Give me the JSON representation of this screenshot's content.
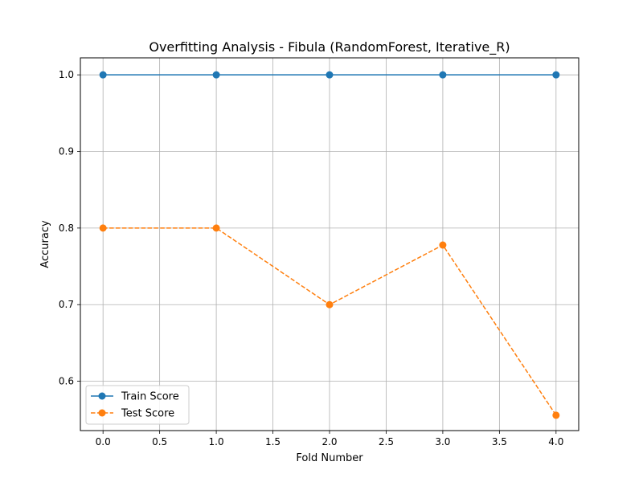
{
  "chart_data": {
    "type": "line",
    "title": "Overfitting Analysis - Fibula (RandomForest, Iterative_R)",
    "xlabel": "Fold Number",
    "ylabel": "Accuracy",
    "x": [
      0,
      1,
      2,
      3,
      4
    ],
    "xlim": [
      -0.2,
      4.2
    ],
    "ylim": [
      0.5356,
      1.0222
    ],
    "xticks": [
      0.0,
      0.5,
      1.0,
      1.5,
      2.0,
      2.5,
      3.0,
      3.5,
      4.0
    ],
    "xtick_labels": [
      "0.0",
      "0.5",
      "1.0",
      "1.5",
      "2.0",
      "2.5",
      "3.0",
      "3.5",
      "4.0"
    ],
    "yticks": [
      0.6,
      0.7,
      0.8,
      0.9,
      1.0
    ],
    "ytick_labels": [
      "0.6",
      "0.7",
      "0.8",
      "0.9",
      "1.0"
    ],
    "grid": true,
    "legend_position": "lower-left",
    "series": [
      {
        "name": "Train Score",
        "values": [
          1.0,
          1.0,
          1.0,
          1.0,
          1.0
        ],
        "color": "#1f77b4",
        "linestyle": "solid",
        "marker": "circle"
      },
      {
        "name": "Test Score",
        "values": [
          0.8,
          0.8,
          0.7,
          0.7778,
          0.5556
        ],
        "color": "#ff7f0e",
        "linestyle": "dashed",
        "marker": "circle"
      }
    ]
  }
}
